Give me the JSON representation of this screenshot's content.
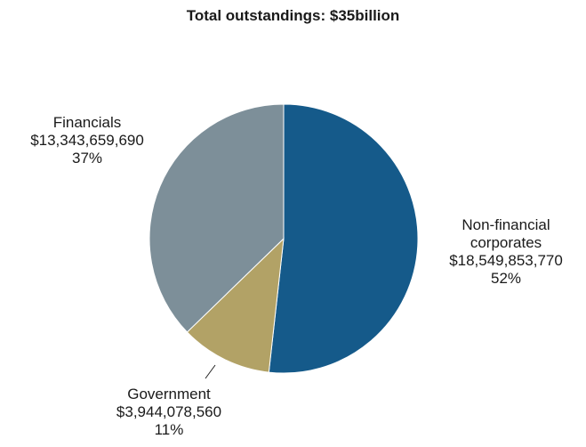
{
  "chart_data": {
    "type": "pie",
    "title": "Total outstandings: $35billion",
    "slices": [
      {
        "name": "Non-financial corporates",
        "name_lines": [
          "Non-financial",
          "corporates"
        ],
        "amount": "$18,549,853,770",
        "value": 18549853770,
        "percent": "52%",
        "color": "#155a8a"
      },
      {
        "name": "Government",
        "name_lines": [
          "Government"
        ],
        "amount": "$3,944,078,560",
        "value": 3944078560,
        "percent": "11%",
        "color": "#b2a266"
      },
      {
        "name": "Financials",
        "name_lines": [
          "Financials"
        ],
        "amount": "$13,343,659,690",
        "value": 13343659690,
        "percent": "37%",
        "color": "#7d8f99"
      }
    ],
    "start_angle_deg": 0,
    "direction": "clockwise"
  }
}
